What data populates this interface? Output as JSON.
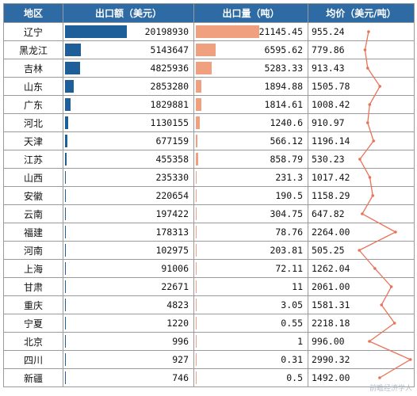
{
  "header": {
    "region": "地区",
    "export_value": "出口额（美元）",
    "export_volume": "出口量（吨）",
    "avg_price": "均价（美元/吨）"
  },
  "colors": {
    "header_bg": "#2e6aa3",
    "value_bar": "#1f5f99",
    "volume_bar": "#f0a07f",
    "price_line": "#e8735a"
  },
  "rows": [
    {
      "region": "辽宁",
      "value": "20198930",
      "volume": "21145.45",
      "price": "955.24"
    },
    {
      "region": "黑龙江",
      "value": "5143647",
      "volume": "6595.62",
      "price": "779.86"
    },
    {
      "region": "吉林",
      "value": "4825936",
      "volume": "5283.33",
      "price": "913.43"
    },
    {
      "region": "山东",
      "value": "2853280",
      "volume": "1894.88",
      "price": "1505.78"
    },
    {
      "region": "广东",
      "value": "1829881",
      "volume": "1814.61",
      "price": "1008.42"
    },
    {
      "region": "河北",
      "value": "1130155",
      "volume": "1240.6",
      "price": "910.97"
    },
    {
      "region": "天津",
      "value": "677159",
      "volume": "566.12",
      "price": "1196.14"
    },
    {
      "region": "江苏",
      "value": "455358",
      "volume": "858.79",
      "price": "530.23"
    },
    {
      "region": "山西",
      "value": "235330",
      "volume": "231.3",
      "price": "1017.42"
    },
    {
      "region": "安徽",
      "value": "220654",
      "volume": "190.5",
      "price": "1158.29"
    },
    {
      "region": "云南",
      "value": "197422",
      "volume": "304.75",
      "price": "647.82"
    },
    {
      "region": "福建",
      "value": "178313",
      "volume": "78.76",
      "price": "2264.00"
    },
    {
      "region": "河南",
      "value": "102975",
      "volume": "203.81",
      "price": "505.25"
    },
    {
      "region": "上海",
      "value": "91006",
      "volume": "72.11",
      "price": "1262.04"
    },
    {
      "region": "甘肃",
      "value": "22671",
      "volume": "11",
      "price": "2061.00"
    },
    {
      "region": "重庆",
      "value": "4823",
      "volume": "3.05",
      "price": "1581.31"
    },
    {
      "region": "宁夏",
      "value": "1220",
      "volume": "0.55",
      "price": "2218.18"
    },
    {
      "region": "北京",
      "value": "996",
      "volume": "1",
      "price": "996.00"
    },
    {
      "region": "四川",
      "value": "927",
      "volume": "0.31",
      "price": "2990.32"
    },
    {
      "region": "新疆",
      "value": "746",
      "volume": "0.5",
      "price": "1492.00"
    }
  ],
  "watermark": "前瞻经济学人"
}
